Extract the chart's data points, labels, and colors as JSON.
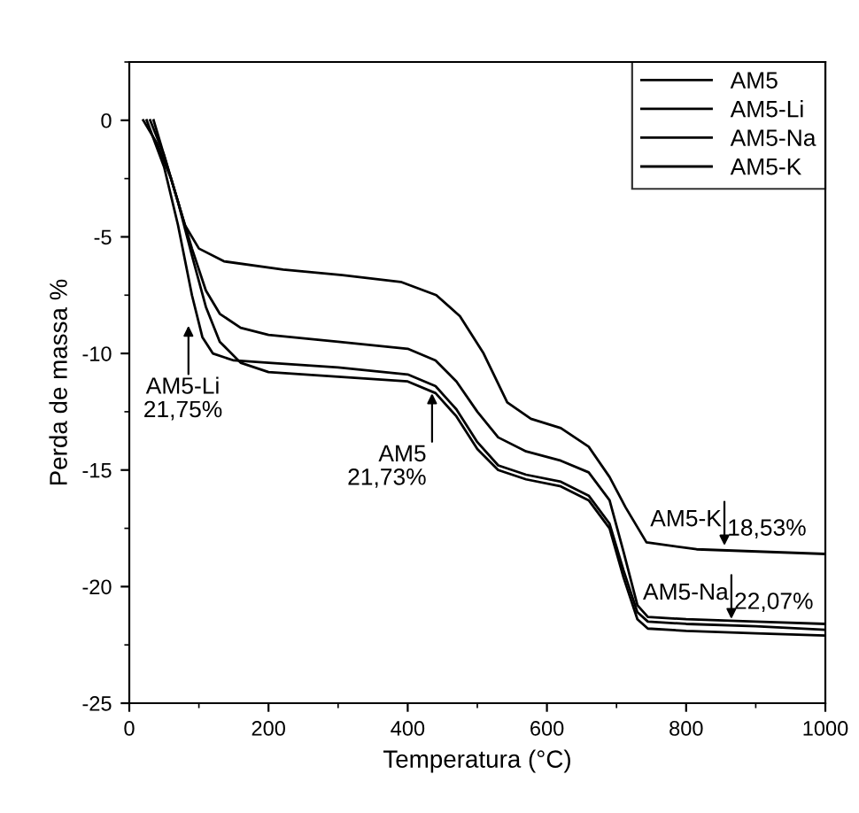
{
  "chart_data": {
    "type": "line",
    "xlabel": "Temperatura (°C)",
    "ylabel": "Perda de massa %",
    "xlim": [
      0,
      1000
    ],
    "xticks": [
      0,
      200,
      400,
      600,
      800,
      1000
    ],
    "ylim": [
      -25,
      2.5
    ],
    "yticks": [
      -25,
      -20,
      -15,
      -10,
      -5,
      0
    ],
    "grid": false,
    "legend": "top right",
    "marker": "none",
    "line_style": "solid",
    "series": [
      {
        "name": "AM5",
        "color": "#000000",
        "x": [
          35,
          50,
          70,
          90,
          110,
          130,
          160,
          200,
          300,
          400,
          440,
          470,
          500,
          530,
          570,
          620,
          660,
          690,
          710,
          730,
          745,
          800,
          900,
          1000
        ],
        "values": [
          0,
          -1.5,
          -3.5,
          -5.8,
          -8,
          -9.5,
          -10.4,
          -10.8,
          -11,
          -11.2,
          -11.7,
          -12.7,
          -14.1,
          -15.0,
          -15.4,
          -15.7,
          -16.3,
          -17.5,
          -19.6,
          -21.4,
          -21.8,
          -21.9,
          -22.0,
          -22.1
        ]
      },
      {
        "name": "AM5-Li",
        "color": "#000000",
        "x": [
          25,
          50,
          70,
          90,
          105,
          120,
          150,
          200,
          300,
          400,
          440,
          470,
          500,
          530,
          570,
          620,
          660,
          690,
          710,
          730,
          745,
          800,
          900,
          1000
        ],
        "values": [
          0,
          -2,
          -4.5,
          -7.5,
          -9.3,
          -10.0,
          -10.3,
          -10.4,
          -10.6,
          -10.9,
          -11.4,
          -12.4,
          -13.8,
          -14.8,
          -15.2,
          -15.5,
          -16.1,
          -17.3,
          -19.3,
          -21.1,
          -21.5,
          -21.6,
          -21.7,
          -21.85
        ]
      },
      {
        "name": "AM5-Na",
        "color": "#000000",
        "x": [
          30,
          50,
          70,
          90,
          110,
          130,
          160,
          200,
          300,
          400,
          440,
          470,
          500,
          530,
          570,
          620,
          660,
          690,
          710,
          730,
          745,
          800,
          900,
          1000
        ],
        "values": [
          0,
          -1.5,
          -3.5,
          -5.5,
          -7.3,
          -8.3,
          -8.9,
          -9.2,
          -9.5,
          -9.8,
          -10.3,
          -11.2,
          -12.5,
          -13.6,
          -14.2,
          -14.6,
          -15.1,
          -16.3,
          -18.5,
          -20.8,
          -21.3,
          -21.4,
          -21.5,
          -21.6
        ]
      },
      {
        "name": "AM5-K",
        "color": "#000000",
        "x": [
          20,
          40,
          60,
          80,
          100,
          136,
          221,
          306,
          390,
          441,
          475,
          509,
          543,
          577,
          620,
          660,
          690,
          713,
          743,
          815,
          1000
        ],
        "values": [
          0,
          -1,
          -2.5,
          -4.5,
          -5.5,
          -6.05,
          -6.4,
          -6.64,
          -6.93,
          -7.5,
          -8.4,
          -10,
          -12.1,
          -12.8,
          -13.2,
          -14,
          -15.3,
          -16.6,
          -18.1,
          -18.4,
          -18.6
        ]
      }
    ],
    "annotations": [
      {
        "text": "AM5-Li\n21,75%",
        "x": 85,
        "y": -8.6
      },
      {
        "text": "AM5\n21,73%",
        "x": 435,
        "y": -11.5
      },
      {
        "text": "AM5-K 18,53%",
        "x": 855,
        "y": -18.45
      },
      {
        "text": "AM5-Na 22,07%",
        "x": 865,
        "y": -21.6
      }
    ]
  }
}
